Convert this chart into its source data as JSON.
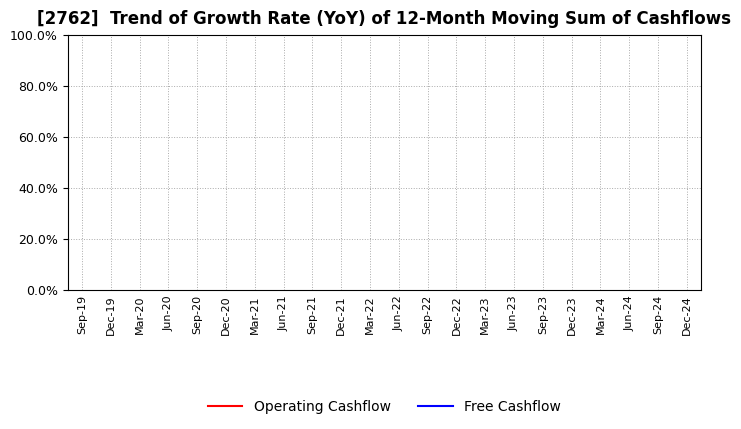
{
  "title": "[2762]  Trend of Growth Rate (YoY) of 12-Month Moving Sum of Cashflows",
  "title_fontsize": 12,
  "ylim": [
    0.0,
    1.0
  ],
  "yticks": [
    0.0,
    0.2,
    0.4,
    0.6,
    0.8,
    1.0
  ],
  "x_labels": [
    "Sep-19",
    "Dec-19",
    "Mar-20",
    "Jun-20",
    "Sep-20",
    "Dec-20",
    "Mar-21",
    "Jun-21",
    "Sep-21",
    "Dec-21",
    "Mar-22",
    "Jun-22",
    "Sep-22",
    "Dec-22",
    "Mar-23",
    "Jun-23",
    "Sep-23",
    "Dec-23",
    "Mar-24",
    "Jun-24",
    "Sep-24",
    "Dec-24"
  ],
  "operating_cashflow_color": "#FF0000",
  "free_cashflow_color": "#0000FF",
  "grid_color": "#AAAAAA",
  "background_color": "#FFFFFF",
  "legend_labels": [
    "Operating Cashflow",
    "Free Cashflow"
  ],
  "spine_color": "#000000",
  "tick_color": "#000000",
  "title_color": "#000000"
}
